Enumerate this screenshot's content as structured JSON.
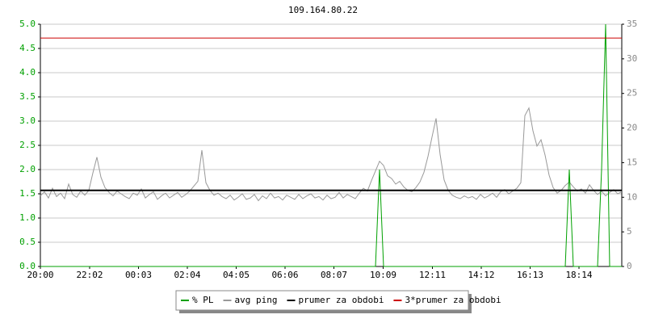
{
  "chart_data": {
    "type": "line",
    "title": "109.164.80.22",
    "x": [
      0,
      10,
      20,
      30,
      40,
      50,
      60,
      70,
      80,
      90,
      100,
      110,
      120,
      130,
      140,
      150,
      160,
      170,
      180,
      190,
      200,
      210,
      220,
      230,
      240,
      250,
      260,
      270,
      280,
      290,
      300,
      310,
      320,
      330,
      340,
      350,
      360,
      370,
      380,
      390,
      400,
      410,
      420,
      430,
      440,
      450,
      460,
      470,
      480,
      490,
      500,
      510,
      520,
      530,
      540,
      550,
      560,
      570,
      580,
      590,
      600,
      610,
      620,
      630,
      640,
      650,
      660,
      670,
      680,
      690,
      700,
      710,
      720,
      730,
      740,
      750,
      760,
      770,
      780,
      790,
      800,
      810,
      820,
      830,
      840,
      850,
      860,
      870,
      880,
      890,
      900,
      910,
      920,
      930,
      940,
      950,
      960,
      970,
      980,
      990,
      1000,
      1010,
      1020,
      1030,
      1040,
      1050,
      1060,
      1070,
      1080,
      1090,
      1100,
      1110,
      1120,
      1130,
      1140,
      1150,
      1160,
      1170,
      1180,
      1190,
      1200,
      1210,
      1220,
      1230,
      1240,
      1250,
      1260,
      1270,
      1280,
      1290,
      1300,
      1310,
      1320,
      1330,
      1340,
      1350,
      1360,
      1370,
      1380,
      1390,
      1400,
      1410,
      1420,
      1430,
      1440
    ],
    "xlim": [
      0,
      1440
    ],
    "xticks": [
      {
        "value": 0,
        "label": "20:00"
      },
      {
        "value": 122,
        "label": "22:02"
      },
      {
        "value": 243,
        "label": "00:03"
      },
      {
        "value": 364,
        "label": "02:04"
      },
      {
        "value": 485,
        "label": "04:05"
      },
      {
        "value": 606,
        "label": "06:06"
      },
      {
        "value": 727,
        "label": "08:07"
      },
      {
        "value": 849,
        "label": "10:09"
      },
      {
        "value": 971,
        "label": "12:11"
      },
      {
        "value": 1092,
        "label": "14:12"
      },
      {
        "value": 1213,
        "label": "16:13"
      },
      {
        "value": 1334,
        "label": "18:14"
      }
    ],
    "ylim": [
      0,
      5
    ],
    "yticks": [
      {
        "value": 0,
        "label": "0.0"
      },
      0.5,
      {
        "value": 1,
        "label": "1.0"
      },
      1.5,
      {
        "value": 2,
        "label": "2.0"
      },
      2.5,
      {
        "value": 3,
        "label": "3.0"
      },
      3.5,
      {
        "value": 4,
        "label": "4.0"
      },
      4.5,
      {
        "value": 5,
        "label": "5.0"
      }
    ],
    "y2lim": [
      0,
      35
    ],
    "y2ticks": [
      0,
      5,
      10,
      15,
      20,
      25,
      30,
      35
    ],
    "grid": true,
    "series": [
      {
        "name": "% PL",
        "color": "#00a000",
        "values": [
          0,
          0,
          0,
          0,
          0,
          0,
          0,
          0,
          0,
          0,
          0,
          0,
          0,
          0,
          0,
          0,
          0,
          0,
          0,
          0,
          0,
          0,
          0,
          0,
          0,
          0,
          0,
          0,
          0,
          0,
          0,
          0,
          0,
          0,
          0,
          0,
          0,
          0,
          0,
          0,
          0,
          0,
          0,
          0,
          0,
          0,
          0,
          0,
          0,
          0,
          0,
          0,
          0,
          0,
          0,
          0,
          0,
          0,
          0,
          0,
          0,
          0,
          0,
          0,
          0,
          0,
          0,
          0,
          0,
          0,
          0,
          0,
          0,
          0,
          0,
          0,
          0,
          0,
          0,
          0,
          0,
          0,
          0,
          0,
          2,
          0,
          0,
          0,
          0,
          0,
          0,
          0,
          0,
          0,
          0,
          0,
          0,
          0,
          0,
          0,
          0,
          0,
          0,
          0,
          0,
          0,
          0,
          0,
          0,
          0,
          0,
          0,
          0,
          0,
          0,
          0,
          0,
          0,
          0,
          0,
          0,
          0,
          0,
          0,
          0,
          0,
          0,
          0,
          0,
          0,
          0,
          2,
          0,
          0,
          0,
          0,
          0,
          0,
          0,
          2,
          5,
          0,
          0,
          0,
          0
        ]
      },
      {
        "name": "avg ping",
        "color": "#999999",
        "axis": "y2",
        "values": [
          10.2,
          10.8,
          9.9,
          11.3,
          10.1,
          10.6,
          9.8,
          11.9,
          10.4,
          10.0,
          10.9,
          10.3,
          11.0,
          13.5,
          15.8,
          12.9,
          11.4,
          10.7,
          10.2,
          10.9,
          10.5,
          10.1,
          9.8,
          10.6,
          10.3,
          11.2,
          9.9,
          10.4,
          10.8,
          9.7,
          10.2,
          10.6,
          9.9,
          10.3,
          10.7,
          10.0,
          10.4,
          10.9,
          11.6,
          12.3,
          16.8,
          12.1,
          11.0,
          10.3,
          10.6,
          10.1,
          9.8,
          10.3,
          9.6,
          10.0,
          10.5,
          9.7,
          9.9,
          10.4,
          9.5,
          10.2,
          9.8,
          10.6,
          9.9,
          10.1,
          9.6,
          10.3,
          10.0,
          9.7,
          10.4,
          9.8,
          10.2,
          10.5,
          9.9,
          10.1,
          9.6,
          10.3,
          9.8,
          10.0,
          10.7,
          9.9,
          10.4,
          10.1,
          9.8,
          10.6,
          11.3,
          10.9,
          12.4,
          13.8,
          15.2,
          14.6,
          13.1,
          12.7,
          11.9,
          12.3,
          11.5,
          11.0,
          10.8,
          11.4,
          12.2,
          13.6,
          15.9,
          18.7,
          21.4,
          16.2,
          12.5,
          11.0,
          10.3,
          10.0,
          9.8,
          10.2,
          9.9,
          10.1,
          9.7,
          10.4,
          9.9,
          10.2,
          10.6,
          10.0,
          10.8,
          11.1,
          10.5,
          10.9,
          11.3,
          12.1,
          21.8,
          22.9,
          19.6,
          17.4,
          18.3,
          16.1,
          13.2,
          11.4,
          10.6,
          11.0,
          11.7,
          12.2,
          11.5,
          10.9,
          11.2,
          10.6,
          11.8,
          11.0,
          10.4,
          10.9,
          10.2,
          10.7,
          11.1,
          10.5,
          10.8
        ]
      }
    ],
    "reference_lines": [
      {
        "name": "prumer za obdobi",
        "color": "#000000",
        "value": 11,
        "axis": "y2"
      },
      {
        "name": "3*prumer za obdobi",
        "color": "#cc0000",
        "value": 33,
        "axis": "y2"
      }
    ]
  }
}
